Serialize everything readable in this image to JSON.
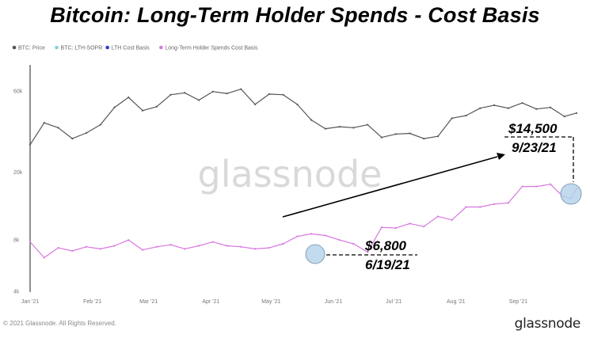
{
  "title": "Bitcoin: Long-Term Holder Spends - Cost Basis",
  "legend": [
    {
      "label": "BTC: Price",
      "color": "#555555"
    },
    {
      "label": "BTC: LTH-SOPR",
      "color": "#7fd3d8"
    },
    {
      "label": "LTH Cost Basis",
      "color": "#2a3fbf"
    },
    {
      "label": "Long-Term Holder Spends Cost Basis",
      "color": "#d777e0"
    }
  ],
  "watermark": "glassnode",
  "footer": {
    "copyright": "© 2021 Glassnode. All Rights Reserved.",
    "brand": "glassnode"
  },
  "annotations": {
    "high_value": "$14,500",
    "high_date": "9/23/21",
    "low_value": "$6,800",
    "low_date": "6/19/21"
  },
  "chart_data": {
    "type": "line",
    "title": "Bitcoin: Long-Term Holder Spends - Cost Basis",
    "y_scale": "log",
    "ylim": [
      4000,
      80000
    ],
    "y_ticks": [
      4000,
      8000,
      20000,
      60000
    ],
    "y_tick_labels": [
      "4k",
      "8k",
      "20k",
      "60k"
    ],
    "x_ticks": [
      "2021-01-01",
      "2021-02-01",
      "2021-03-01",
      "2021-04-01",
      "2021-05-01",
      "2021-06-01",
      "2021-07-01",
      "2021-08-01",
      "2021-09-01"
    ],
    "x_tick_labels": [
      "Jan '21",
      "Feb '21",
      "Mar '21",
      "Apr '21",
      "May '21",
      "Jun '21",
      "Jul '21",
      "Aug '21",
      "Sep '21"
    ],
    "xlim": [
      "2021-01-01",
      "2021-09-30"
    ],
    "grid": false,
    "legend_position": "top-left",
    "series": [
      {
        "name": "BTC: Price",
        "color": "#555555",
        "x": [
          "2021-01-01",
          "2021-01-08",
          "2021-01-15",
          "2021-01-22",
          "2021-01-29",
          "2021-02-05",
          "2021-02-12",
          "2021-02-19",
          "2021-02-26",
          "2021-03-05",
          "2021-03-12",
          "2021-03-19",
          "2021-03-26",
          "2021-04-02",
          "2021-04-09",
          "2021-04-16",
          "2021-04-23",
          "2021-04-30",
          "2021-05-07",
          "2021-05-14",
          "2021-05-21",
          "2021-05-28",
          "2021-06-04",
          "2021-06-11",
          "2021-06-18",
          "2021-06-25",
          "2021-07-02",
          "2021-07-09",
          "2021-07-16",
          "2021-07-23",
          "2021-07-30",
          "2021-08-06",
          "2021-08-13",
          "2021-08-20",
          "2021-08-27",
          "2021-09-03",
          "2021-09-10",
          "2021-09-17",
          "2021-09-24",
          "2021-09-30"
        ],
        "values": [
          29000,
          39000,
          36500,
          31500,
          34000,
          38000,
          48000,
          55000,
          46000,
          48500,
          57000,
          58500,
          53000,
          59500,
          58000,
          61500,
          50000,
          57500,
          57000,
          50000,
          40500,
          36000,
          37000,
          36500,
          38000,
          32000,
          33500,
          33800,
          31500,
          32500,
          41500,
          43000,
          47500,
          49500,
          47500,
          51000,
          47000,
          48000,
          42500,
          44500
        ]
      },
      {
        "name": "Long-Term Holder Spends Cost Basis",
        "color": "#d777e0",
        "x": [
          "2021-01-01",
          "2021-01-08",
          "2021-01-15",
          "2021-01-22",
          "2021-01-29",
          "2021-02-05",
          "2021-02-12",
          "2021-02-19",
          "2021-02-26",
          "2021-03-05",
          "2021-03-12",
          "2021-03-19",
          "2021-03-26",
          "2021-04-02",
          "2021-04-09",
          "2021-04-16",
          "2021-04-23",
          "2021-04-30",
          "2021-05-07",
          "2021-05-14",
          "2021-05-21",
          "2021-05-28",
          "2021-06-04",
          "2021-06-11",
          "2021-06-18",
          "2021-06-25",
          "2021-07-02",
          "2021-07-09",
          "2021-07-16",
          "2021-07-23",
          "2021-07-30",
          "2021-08-06",
          "2021-08-13",
          "2021-08-20",
          "2021-08-27",
          "2021-09-03",
          "2021-09-10",
          "2021-09-17",
          "2021-09-23",
          "2021-09-27",
          "2021-09-30"
        ],
        "values": [
          7800,
          6300,
          7200,
          6900,
          7300,
          7100,
          7400,
          8000,
          7000,
          7300,
          7500,
          7100,
          7400,
          7800,
          7400,
          7300,
          7100,
          7200,
          7600,
          8400,
          8700,
          8500,
          8000,
          7600,
          6800,
          9500,
          9400,
          10000,
          9600,
          11000,
          10500,
          12500,
          12500,
          13000,
          13200,
          16500,
          16500,
          17000,
          14500,
          14000,
          16000
        ]
      }
    ]
  }
}
